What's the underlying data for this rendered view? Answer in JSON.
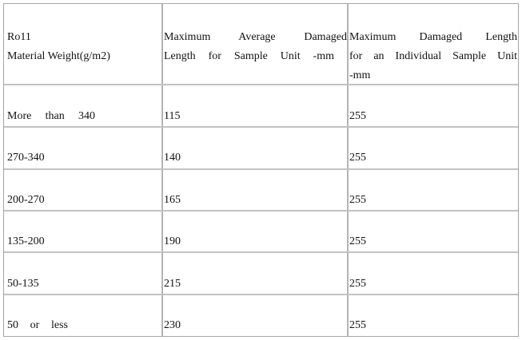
{
  "table": {
    "headers": {
      "col1_line1": "Ro11",
      "col1_line2": "Material Weight(g/m2)",
      "col2_line1": "Maximum Average Damaged",
      "col2_line2": "Length for Sample Unit -mm",
      "col3_line1": "Maximum Damaged Length",
      "col3_line2": "for an Individual Sample Unit",
      "col3_line3": "-mm"
    },
    "rows": [
      {
        "weight": "More than 340",
        "avg_length": "115",
        "ind_length": "255"
      },
      {
        "weight": "270-340",
        "avg_length": "140",
        "ind_length": "255"
      },
      {
        "weight": "200-270",
        "avg_length": "165",
        "ind_length": "255"
      },
      {
        "weight": "135-200",
        "avg_length": "190",
        "ind_length": "255"
      },
      {
        "weight": "50-135",
        "avg_length": "215",
        "ind_length": "255"
      },
      {
        "weight": "50 or less",
        "avg_length": "230",
        "ind_length": "255"
      }
    ]
  }
}
